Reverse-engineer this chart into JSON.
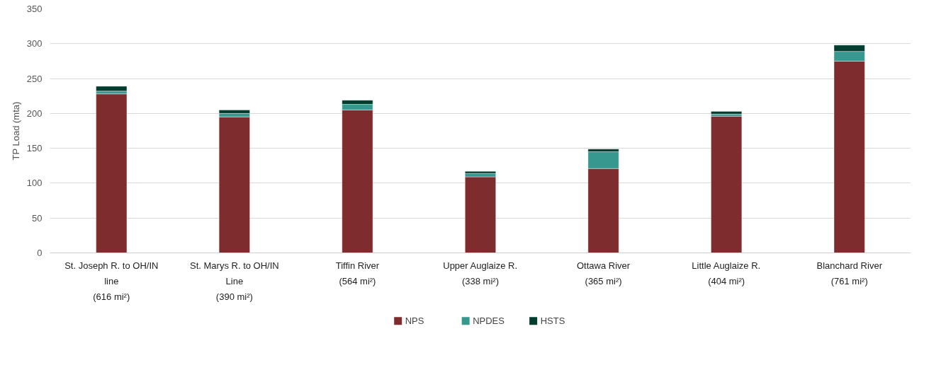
{
  "chart_data": {
    "type": "bar",
    "stacked": true,
    "ylabel": "TP Load (mta)",
    "categories": [
      "St. Joseph R. to OH/IN line (616 mi²)",
      "St. Marys R. to OH/IN Line (390 mi²)",
      "Tiffin River (564 mi²)",
      "Upper Auglaize R. (338 mi²)",
      "Ottawa River (365 mi²)",
      "Little Auglaize R. (404 mi²)",
      "Blanchard River (761 mi²)"
    ],
    "series": [
      {
        "name": "NPS",
        "color": "#7f2c2f",
        "values": [
          228,
          195,
          205,
          109,
          121,
          196,
          275
        ]
      },
      {
        "name": "NPDES",
        "color": "#379890",
        "values": [
          4,
          5,
          8,
          5,
          24,
          3,
          14
        ]
      },
      {
        "name": "HSTS",
        "color": "#023d30",
        "values": [
          7,
          5,
          6,
          3,
          4,
          4,
          9
        ]
      }
    ],
    "ylim": [
      0,
      350
    ],
    "yticks": [
      0,
      50,
      100,
      150,
      200,
      250,
      300,
      350
    ],
    "grid": "y",
    "legend": "bottom"
  }
}
